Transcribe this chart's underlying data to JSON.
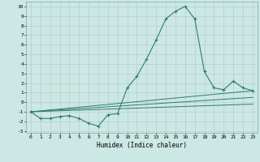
{
  "xlabel": "Humidex (Indice chaleur)",
  "ylabel": "",
  "bg_color": "#cce8e4",
  "grid_color": "#b0c8c4",
  "line_color": "#2e7d6e",
  "xlim": [
    -0.5,
    23.5
  ],
  "ylim": [
    -3.2,
    10.5
  ],
  "xticks": [
    0,
    1,
    2,
    3,
    4,
    5,
    6,
    7,
    8,
    9,
    10,
    11,
    12,
    13,
    14,
    15,
    16,
    17,
    18,
    19,
    20,
    21,
    22,
    23
  ],
  "yticks": [
    -3,
    -2,
    -1,
    0,
    1,
    2,
    3,
    4,
    5,
    6,
    7,
    8,
    9,
    10
  ],
  "series_main": {
    "x": [
      0,
      1,
      2,
      3,
      4,
      5,
      6,
      7,
      8,
      9,
      10,
      11,
      12,
      13,
      14,
      15,
      16,
      17,
      18,
      19,
      20,
      21,
      22,
      23
    ],
    "y": [
      -1,
      -1.7,
      -1.7,
      -1.5,
      -1.4,
      -1.7,
      -2.2,
      -2.5,
      -1.3,
      -1.2,
      1.5,
      2.7,
      4.5,
      6.5,
      8.7,
      9.5,
      10.0,
      8.7,
      3.2,
      1.5,
      1.3,
      2.2,
      1.5,
      1.2
    ]
  },
  "series_lines": [
    {
      "x": [
        0,
        23
      ],
      "y": [
        -1.0,
        1.2
      ]
    },
    {
      "x": [
        0,
        23
      ],
      "y": [
        -1.0,
        0.5
      ]
    },
    {
      "x": [
        0,
        23
      ],
      "y": [
        -1.0,
        -0.2
      ]
    }
  ]
}
